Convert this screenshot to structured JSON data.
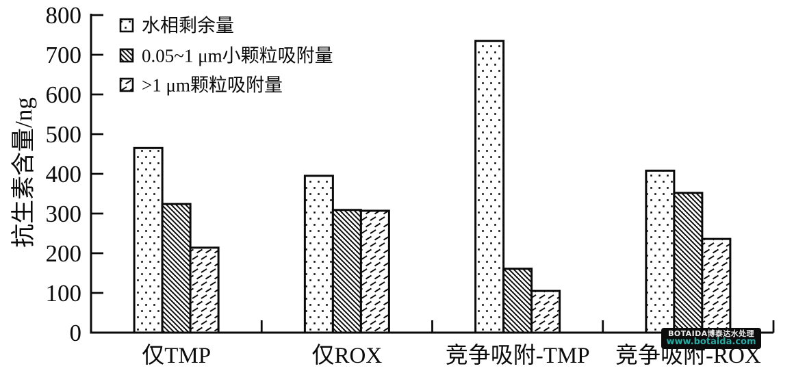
{
  "chart_data": {
    "type": "bar",
    "title": "",
    "xlabel": "",
    "ylabel": "抗生素含量/ng",
    "ylim": [
      0,
      800
    ],
    "ytick_step": 100,
    "grid": false,
    "legend_position": "top-left-inside",
    "axis_color": "#0a0a0a",
    "bar_outline_color": "#0a0a0a",
    "bar_background": "#ffffff",
    "categories": [
      "仅TMP",
      "仅ROX",
      "竞争吸附-TMP",
      "竞争吸附-ROX"
    ],
    "series": [
      {
        "name": "水相剩余量",
        "pattern": "dots",
        "values": [
          465,
          395,
          735,
          408
        ]
      },
      {
        "name": "0.05~1 μm小颗粒吸附量",
        "pattern": "hatch-dense",
        "values": [
          324,
          309,
          161,
          352
        ]
      },
      {
        "name": ">1 μm颗粒吸附量",
        "pattern": "dash-light",
        "values": [
          214,
          307,
          105,
          236
        ]
      }
    ]
  },
  "watermark": {
    "line1": "BOTAIDA博泰达水处理",
    "line2": "www.botaida.com",
    "bg": "#0c0c0c",
    "line1_color": "#ececec",
    "line2_color": "#2aa8a2"
  }
}
